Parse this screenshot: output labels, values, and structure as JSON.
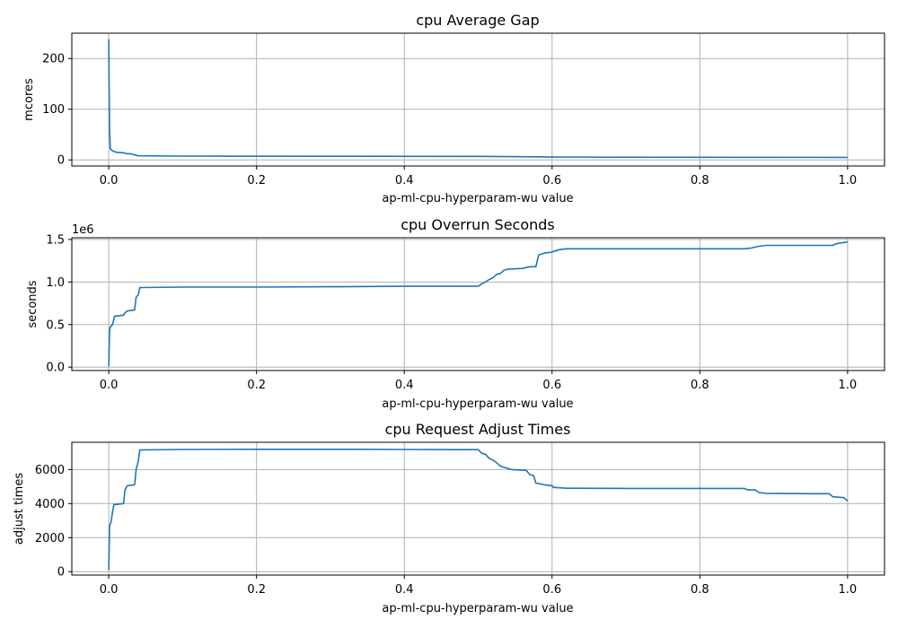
{
  "chart_data": [
    {
      "type": "line",
      "title": "cpu Average Gap",
      "xlabel": "ap-ml-cpu-hyperparam-wu value",
      "ylabel": "mcores",
      "offset_label": "",
      "xlim": [
        -0.05,
        1.05
      ],
      "ylim": [
        -12,
        250
      ],
      "xticks": [
        0.0,
        0.2,
        0.4,
        0.6,
        0.8,
        1.0
      ],
      "xtick_labels": [
        "0.0",
        "0.2",
        "0.4",
        "0.6",
        "0.8",
        "1.0"
      ],
      "yticks": [
        0,
        100,
        200
      ],
      "ytick_labels": [
        "0",
        "100",
        "200"
      ],
      "grid": true,
      "color": "#1f77b4",
      "x": [
        0.0,
        0.0005,
        0.001,
        0.002,
        0.005,
        0.01,
        0.02,
        0.025,
        0.03,
        0.035,
        0.04,
        0.1,
        0.3,
        0.5,
        0.58,
        0.6,
        0.8,
        1.0
      ],
      "y": [
        238,
        150,
        60,
        22,
        18,
        15,
        14,
        12,
        12,
        10,
        8,
        7.5,
        7.2,
        7,
        6,
        5.5,
        5.2,
        5
      ]
    },
    {
      "type": "line",
      "title": "cpu Overrun Seconds",
      "xlabel": "ap-ml-cpu-hyperparam-wu value",
      "ylabel": "seconds",
      "offset_label": "1e6",
      "xlim": [
        -0.05,
        1.05
      ],
      "ylim": [
        -0.04,
        1.52
      ],
      "xticks": [
        0.0,
        0.2,
        0.4,
        0.6,
        0.8,
        1.0
      ],
      "xtick_labels": [
        "0.0",
        "0.2",
        "0.4",
        "0.6",
        "0.8",
        "1.0"
      ],
      "yticks": [
        0.0,
        0.5,
        1.0,
        1.5
      ],
      "ytick_labels": [
        "0.0",
        "0.5",
        "1.0",
        "1.5"
      ],
      "grid": true,
      "color": "#1f77b4",
      "x": [
        0.0,
        0.001,
        0.002,
        0.005,
        0.008,
        0.01,
        0.02,
        0.022,
        0.025,
        0.035,
        0.037,
        0.04,
        0.042,
        0.1,
        0.2,
        0.3,
        0.4,
        0.5,
        0.505,
        0.51,
        0.515,
        0.52,
        0.525,
        0.53,
        0.535,
        0.54,
        0.56,
        0.57,
        0.578,
        0.58,
        0.582,
        0.59,
        0.6,
        0.602,
        0.61,
        0.62,
        0.7,
        0.8,
        0.86,
        0.87,
        0.875,
        0.88,
        0.89,
        0.95,
        0.98,
        0.985,
        1.0
      ],
      "y": [
        0.01,
        0.43,
        0.47,
        0.5,
        0.6,
        0.6,
        0.61,
        0.64,
        0.66,
        0.67,
        0.82,
        0.85,
        0.935,
        0.94,
        0.94,
        0.945,
        0.95,
        0.95,
        0.98,
        1.0,
        1.03,
        1.05,
        1.09,
        1.1,
        1.14,
        1.15,
        1.16,
        1.18,
        1.18,
        1.25,
        1.32,
        1.34,
        1.35,
        1.36,
        1.38,
        1.39,
        1.39,
        1.39,
        1.39,
        1.4,
        1.41,
        1.42,
        1.43,
        1.43,
        1.43,
        1.45,
        1.47
      ]
    },
    {
      "type": "line",
      "title": "cpu Request Adjust Times",
      "xlabel": "ap-ml-cpu-hyperparam-wu value",
      "ylabel": "adjust times",
      "offset_label": "",
      "xlim": [
        -0.05,
        1.05
      ],
      "ylim": [
        -200,
        7600
      ],
      "xticks": [
        0.0,
        0.2,
        0.4,
        0.6,
        0.8,
        1.0
      ],
      "xtick_labels": [
        "0.0",
        "0.2",
        "0.4",
        "0.6",
        "0.8",
        "1.0"
      ],
      "yticks": [
        0,
        2000,
        4000,
        6000
      ],
      "ytick_labels": [
        "0",
        "2000",
        "4000",
        "6000"
      ],
      "grid": true,
      "color": "#1f77b4",
      "x": [
        0.0,
        0.001,
        0.003,
        0.005,
        0.007,
        0.01,
        0.02,
        0.022,
        0.025,
        0.035,
        0.037,
        0.04,
        0.042,
        0.1,
        0.2,
        0.3,
        0.4,
        0.5,
        0.505,
        0.51,
        0.515,
        0.52,
        0.525,
        0.53,
        0.545,
        0.565,
        0.57,
        0.575,
        0.578,
        0.59,
        0.6,
        0.602,
        0.62,
        0.7,
        0.8,
        0.86,
        0.865,
        0.875,
        0.88,
        0.89,
        0.95,
        0.975,
        0.98,
        0.995,
        1.0
      ],
      "y": [
        100,
        2700,
        2900,
        3500,
        3950,
        3950,
        4000,
        4800,
        5050,
        5100,
        6000,
        6500,
        7150,
        7180,
        7190,
        7190,
        7180,
        7170,
        6950,
        6900,
        6650,
        6550,
        6400,
        6200,
        6000,
        5950,
        5700,
        5650,
        5200,
        5100,
        5050,
        4950,
        4900,
        4890,
        4890,
        4890,
        4800,
        4800,
        4650,
        4600,
        4580,
        4580,
        4400,
        4350,
        4150
      ]
    }
  ]
}
